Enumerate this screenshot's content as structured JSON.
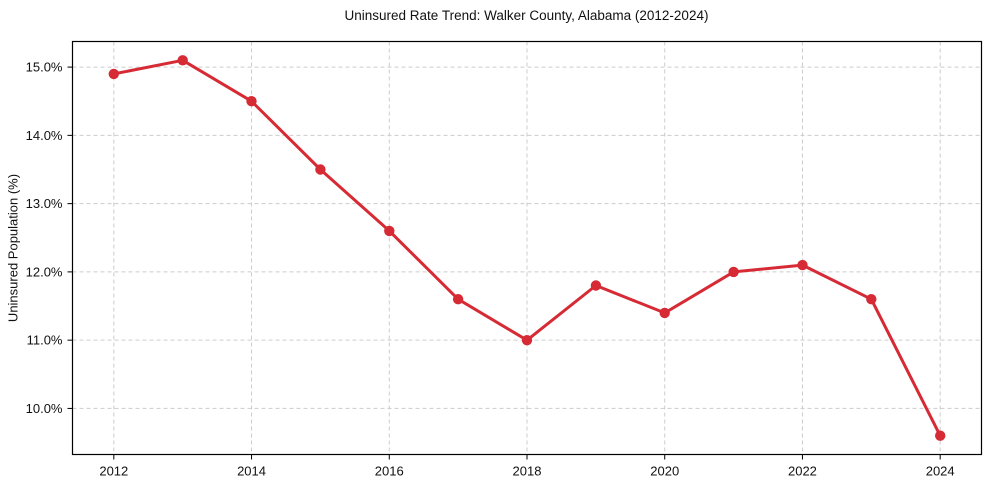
{
  "chart_data": {
    "type": "line",
    "title": "Uninsured Rate Trend: Walker County, Alabama (2012-2024)",
    "xlabel": "",
    "ylabel": "Uninsured Population (%)",
    "x": [
      2012,
      2013,
      2014,
      2015,
      2016,
      2017,
      2018,
      2019,
      2020,
      2021,
      2022,
      2023,
      2024
    ],
    "values": [
      14.9,
      15.1,
      14.5,
      13.5,
      12.6,
      11.6,
      11.0,
      11.8,
      11.4,
      12.0,
      12.1,
      11.6,
      9.6
    ],
    "xlim": [
      2011.4,
      2024.6
    ],
    "ylim": [
      9.325,
      15.375
    ],
    "xticks": {
      "values": [
        2012,
        2014,
        2016,
        2018,
        2020,
        2022,
        2024
      ],
      "labels": [
        "2012",
        "2014",
        "2016",
        "2018",
        "2020",
        "2022",
        "2024"
      ]
    },
    "yticks": {
      "values": [
        10,
        11,
        12,
        13,
        14,
        15
      ],
      "labels": [
        "10.0%",
        "11.0%",
        "12.0%",
        "13.0%",
        "14.0%",
        "15.0%"
      ]
    },
    "grid": true,
    "legend": "none",
    "line_color": "#d62b35",
    "marker": "circle",
    "grid_color": "#cccccc",
    "axis_color": "#000000",
    "background": "#ffffff"
  }
}
